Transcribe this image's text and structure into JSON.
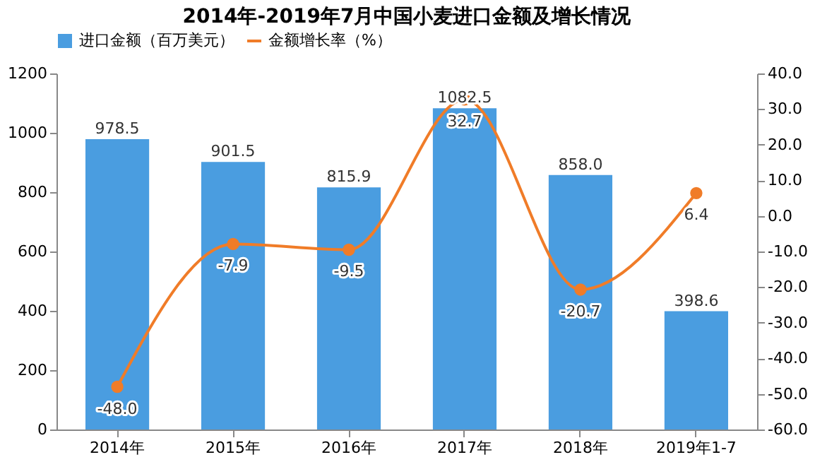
{
  "chart_data": {
    "type": "bar",
    "title": "2014年-2019年7月中国小麦进口金额及增长情况",
    "categories": [
      "2014年",
      "2015年",
      "2016年",
      "2017年",
      "2018年",
      "2019年1-7"
    ],
    "series": [
      {
        "name": "进口金额（百万美元）",
        "color": "#4a9de0",
        "values": [
          978.5,
          901.5,
          815.9,
          1082.5,
          858.0,
          398.6
        ],
        "value_labels": [
          "978.5",
          "901.5",
          "815.9",
          "1082.5",
          "858.0",
          "398.6"
        ]
      },
      {
        "name": "金额增长率（%）",
        "type": "line",
        "axis": "y2",
        "color": "#f07c28",
        "values": [
          -48.0,
          -7.9,
          -9.5,
          32.7,
          -20.7,
          6.4
        ],
        "value_labels": [
          "-48.0",
          "-7.9",
          "-9.5",
          "32.7",
          "-20.7",
          "6.4"
        ]
      }
    ],
    "ylim": [
      0,
      1200
    ],
    "yticks": [
      0,
      200,
      400,
      600,
      800,
      1000,
      1200
    ],
    "y2lim": [
      -60,
      40
    ],
    "y2ticks": [
      {
        "value": -60,
        "label": "-60.0"
      },
      {
        "value": -50,
        "label": "-50.0"
      },
      {
        "value": -40,
        "label": "-40.0"
      },
      {
        "value": -30,
        "label": "-30.0"
      },
      {
        "value": -20,
        "label": "-20.0"
      },
      {
        "value": -10,
        "label": "-10.0"
      },
      {
        "value": 0,
        "label": "0.0"
      },
      {
        "value": 10,
        "label": "10.0"
      },
      {
        "value": 20,
        "label": "20.0"
      },
      {
        "value": 30,
        "label": "30.0"
      },
      {
        "value": 40,
        "label": "40.0"
      }
    ],
    "legend": "top",
    "marker": "circle",
    "grid": false
  }
}
